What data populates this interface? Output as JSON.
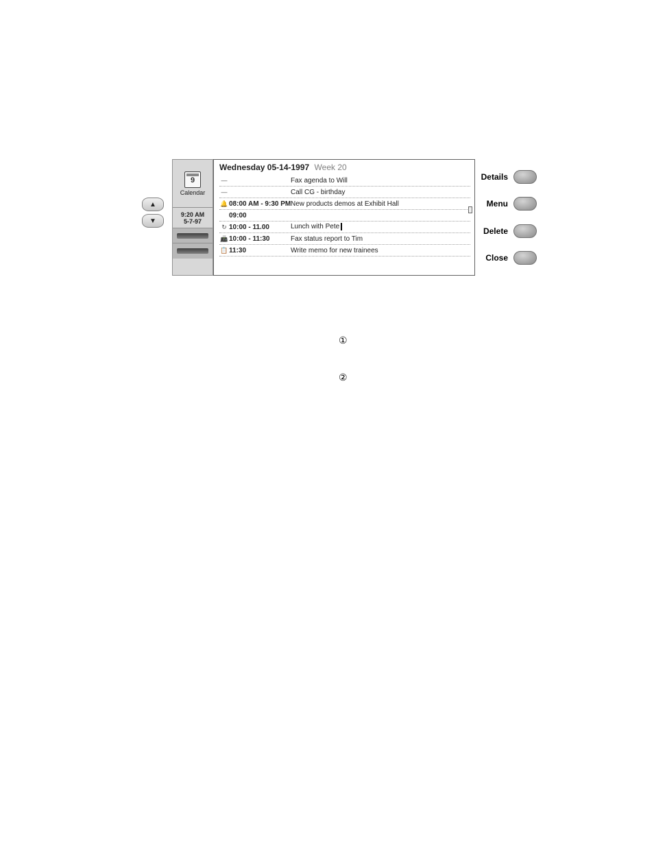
{
  "left": {
    "calendar_label": "Calendar",
    "date_line1": "9:20 AM",
    "date_line2": "5-7-97"
  },
  "header": {
    "day_date": "Wednesday 05-14-1997",
    "week": "Week 20"
  },
  "events": [
    {
      "icon": "—",
      "time": "",
      "time_light": true,
      "desc": "Fax agenda to Will"
    },
    {
      "icon": "—",
      "time": "",
      "time_light": true,
      "desc": "Call CG - birthday"
    },
    {
      "icon": "🔔",
      "time": "08:00 AM - 9:30 PM",
      "time_light": false,
      "desc": "New products demos at Exhibit Hall"
    },
    {
      "icon": "",
      "time": "09:00",
      "time_light": false,
      "desc": ""
    },
    {
      "icon": "↻",
      "time": "10:00 - 11.00",
      "time_light": false,
      "desc": "Lunch with Pete",
      "cursor": true
    },
    {
      "icon": "📠",
      "time": "10:00 - 11:30",
      "time_light": false,
      "desc": "Fax status report to Tim"
    },
    {
      "icon": "📋",
      "time": "11:30",
      "time_light": false,
      "desc": "Write memo for new trainees"
    }
  ],
  "softkeys": {
    "k1": "Details",
    "k2": "Menu",
    "k3": "Delete",
    "k4": "Close"
  },
  "callouts": {
    "c1": "①",
    "c2": "②"
  },
  "colors": {
    "panel_bg": "#d8d8d8",
    "border": "#808080",
    "text": "#202020"
  }
}
